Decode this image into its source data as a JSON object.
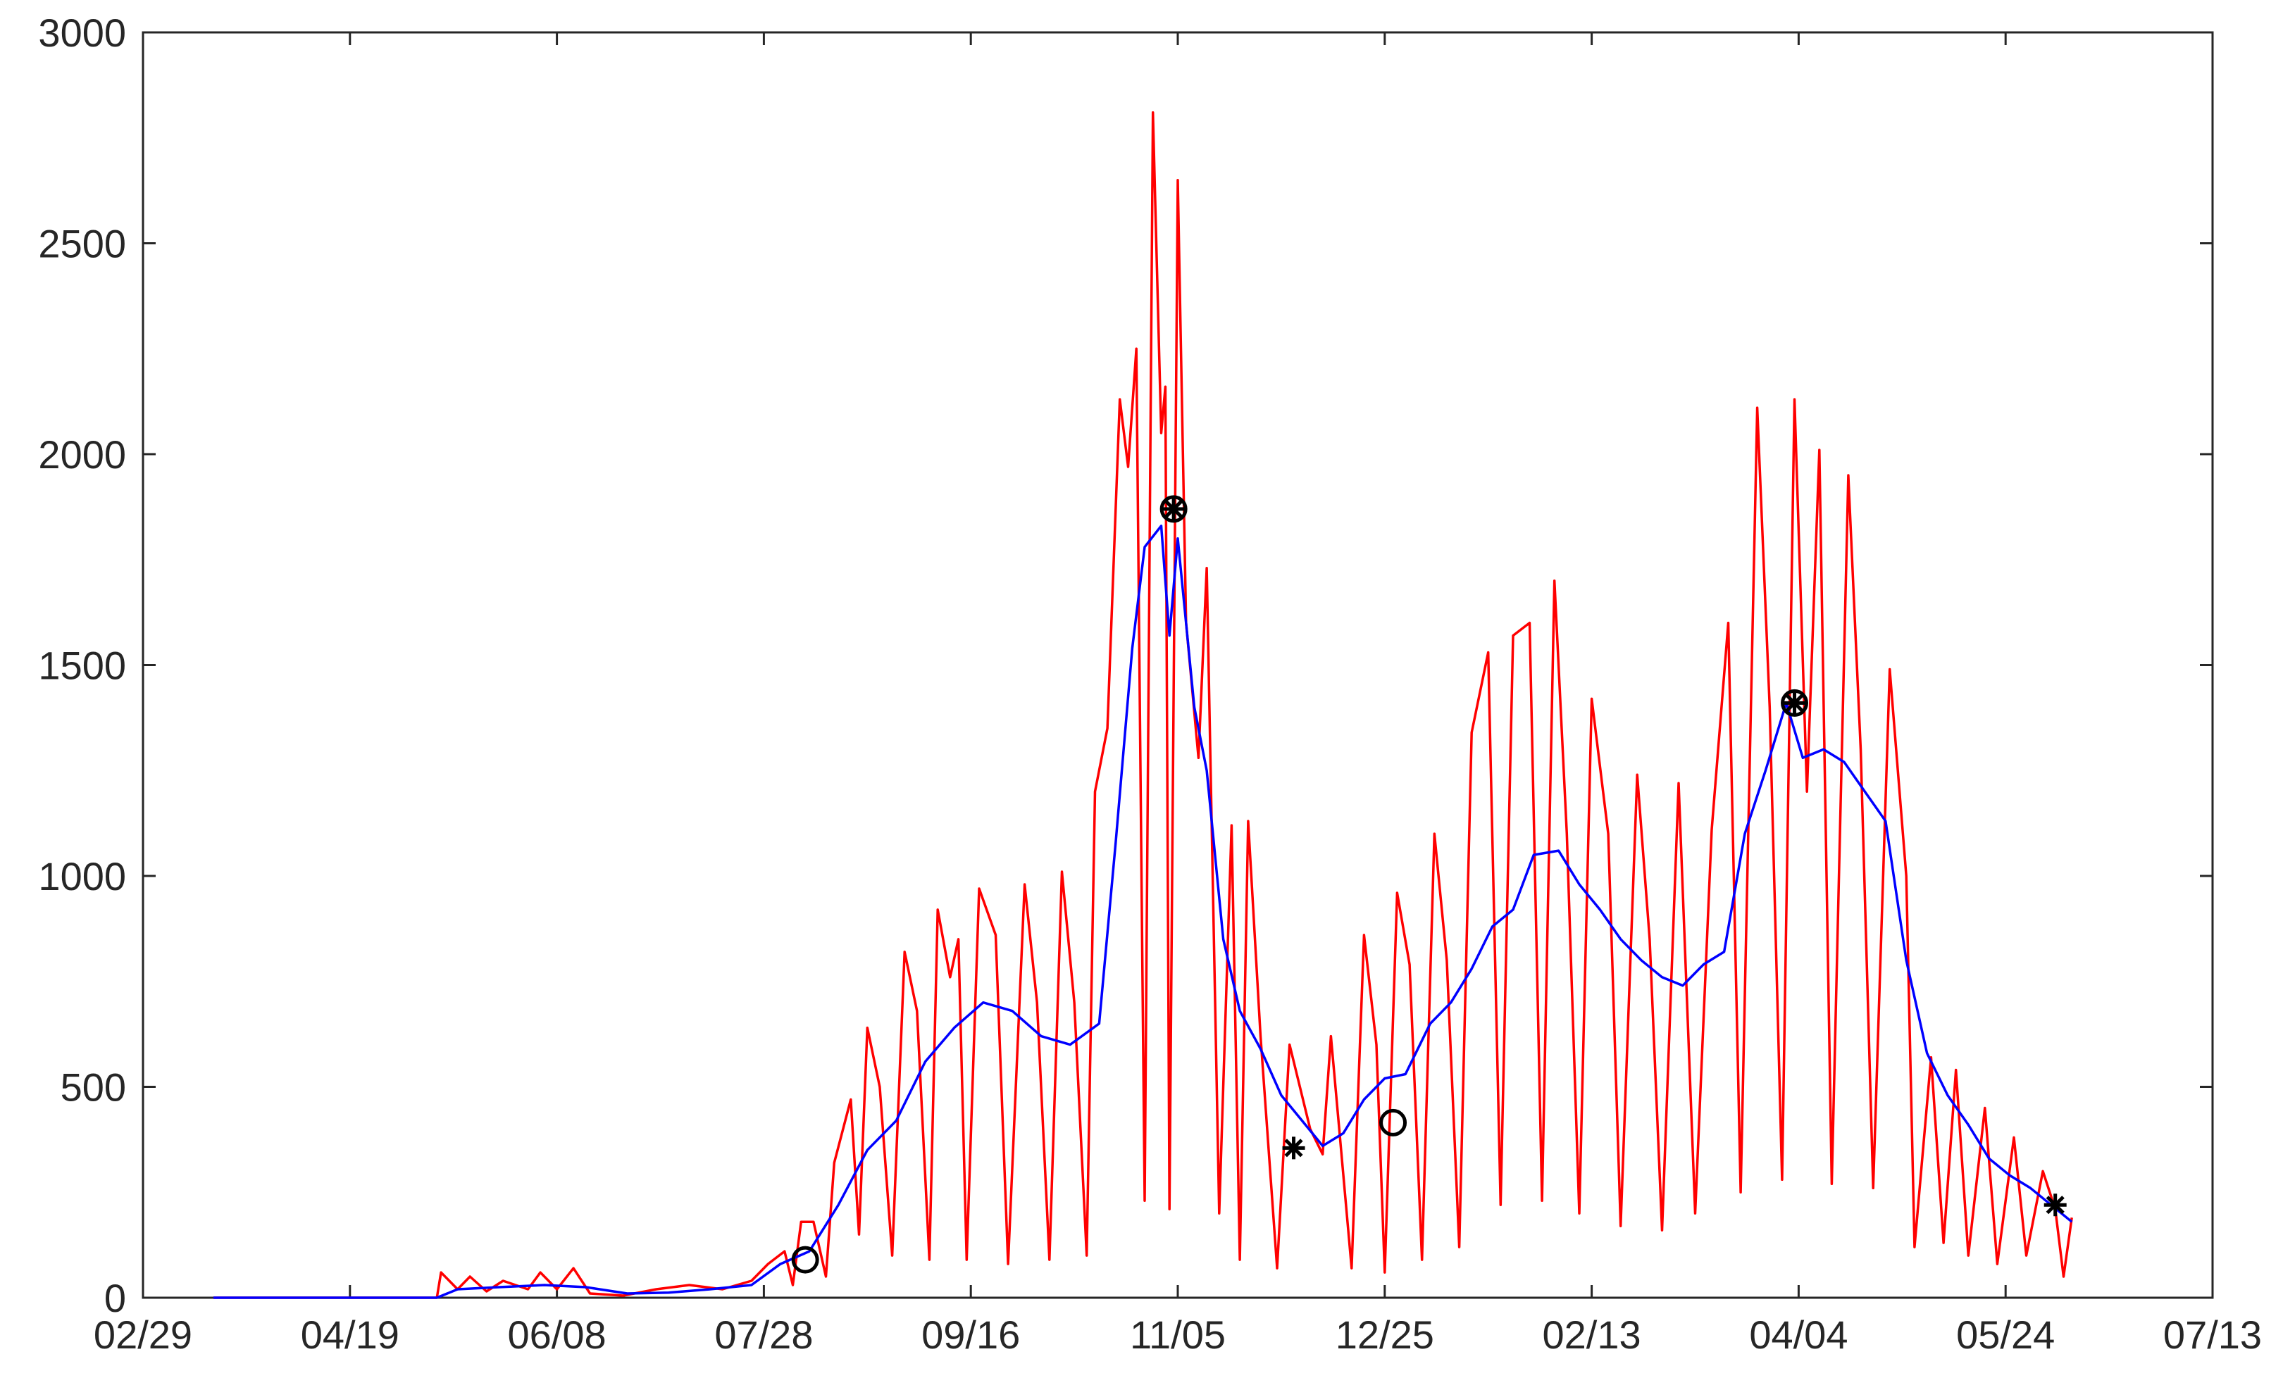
{
  "chart_data": {
    "type": "line",
    "title": "",
    "xlabel": "",
    "ylabel": "",
    "xlim": [
      "2020-02-29",
      "2021-07-13"
    ],
    "ylim": [
      0,
      3000
    ],
    "grid": false,
    "x_ticks": [
      "02/29",
      "04/19",
      "06/08",
      "07/28",
      "09/16",
      "11/05",
      "12/25",
      "02/13",
      "04/04",
      "05/24",
      "07/13"
    ],
    "y_ticks": [
      "0",
      "500",
      "1000",
      "1500",
      "2000",
      "2500",
      "3000"
    ],
    "colors": {
      "daily": "#ff0000",
      "average": "#0000ff",
      "markers": "#000000"
    },
    "series": [
      {
        "values_note": "",
        "color": "#ff0000",
        "points": [
          [
            "2020-03-17",
            0
          ],
          [
            "2020-05-10",
            0
          ],
          [
            "2020-05-11",
            60
          ],
          [
            "2020-05-15",
            20
          ],
          [
            "2020-05-18",
            50
          ],
          [
            "2020-05-22",
            15
          ],
          [
            "2020-05-26",
            40
          ],
          [
            "2020-06-01",
            20
          ],
          [
            "2020-06-04",
            60
          ],
          [
            "2020-06-08",
            20
          ],
          [
            "2020-06-12",
            70
          ],
          [
            "2020-06-16",
            10
          ],
          [
            "2020-06-24",
            5
          ],
          [
            "2020-07-02",
            20
          ],
          [
            "2020-07-10",
            30
          ],
          [
            "2020-07-18",
            20
          ],
          [
            "2020-07-25",
            40
          ],
          [
            "2020-07-29",
            80
          ],
          [
            "2020-08-02",
            110
          ],
          [
            "2020-08-04",
            30
          ],
          [
            "2020-08-06",
            180
          ],
          [
            "2020-08-09",
            180
          ],
          [
            "2020-08-12",
            50
          ],
          [
            "2020-08-14",
            320
          ],
          [
            "2020-08-18",
            470
          ],
          [
            "2020-08-20",
            150
          ],
          [
            "2020-08-22",
            640
          ],
          [
            "2020-08-25",
            500
          ],
          [
            "2020-08-28",
            100
          ],
          [
            "2020-08-31",
            820
          ],
          [
            "2020-09-03",
            680
          ],
          [
            "2020-09-06",
            90
          ],
          [
            "2020-09-08",
            920
          ],
          [
            "2020-09-11",
            760
          ],
          [
            "2020-09-13",
            850
          ],
          [
            "2020-09-15",
            90
          ],
          [
            "2020-09-18",
            970
          ],
          [
            "2020-09-22",
            860
          ],
          [
            "2020-09-25",
            80
          ],
          [
            "2020-09-29",
            980
          ],
          [
            "2020-10-02",
            700
          ],
          [
            "2020-10-05",
            90
          ],
          [
            "2020-10-08",
            1010
          ],
          [
            "2020-10-11",
            700
          ],
          [
            "2020-10-14",
            100
          ],
          [
            "2020-10-16",
            1200
          ],
          [
            "2020-10-19",
            1350
          ],
          [
            "2020-10-22",
            2130
          ],
          [
            "2020-10-24",
            1970
          ],
          [
            "2020-10-26",
            2250
          ],
          [
            "2020-10-28",
            230
          ],
          [
            "2020-10-30",
            2810
          ],
          [
            "2020-11-01",
            2050
          ],
          [
            "2020-11-02",
            2160
          ],
          [
            "2020-11-03",
            210
          ],
          [
            "2020-11-05",
            2650
          ],
          [
            "2020-11-07",
            1600
          ],
          [
            "2020-11-10",
            1280
          ],
          [
            "2020-11-12",
            1730
          ],
          [
            "2020-11-15",
            200
          ],
          [
            "2020-11-18",
            1120
          ],
          [
            "2020-11-20",
            90
          ],
          [
            "2020-11-22",
            1130
          ],
          [
            "2020-11-25",
            620
          ],
          [
            "2020-11-29",
            70
          ],
          [
            "2020-12-02",
            600
          ],
          [
            "2020-12-07",
            400
          ],
          [
            "2020-12-10",
            340
          ],
          [
            "2020-12-12",
            620
          ],
          [
            "2020-12-14",
            400
          ],
          [
            "2020-12-17",
            70
          ],
          [
            "2020-12-20",
            860
          ],
          [
            "2020-12-23",
            600
          ],
          [
            "2020-12-25",
            60
          ],
          [
            "2020-12-28",
            960
          ],
          [
            "2020-12-31",
            790
          ],
          [
            "2021-01-03",
            90
          ],
          [
            "2021-01-06",
            1100
          ],
          [
            "2021-01-09",
            800
          ],
          [
            "2021-01-12",
            120
          ],
          [
            "2021-01-15",
            1340
          ],
          [
            "2021-01-19",
            1530
          ],
          [
            "2021-01-22",
            220
          ],
          [
            "2021-01-25",
            1570
          ],
          [
            "2021-01-29",
            1600
          ],
          [
            "2021-02-01",
            230
          ],
          [
            "2021-02-04",
            1700
          ],
          [
            "2021-02-07",
            1100
          ],
          [
            "2021-02-10",
            200
          ],
          [
            "2021-02-13",
            1420
          ],
          [
            "2021-02-17",
            1100
          ],
          [
            "2021-02-20",
            170
          ],
          [
            "2021-02-24",
            1240
          ],
          [
            "2021-02-27",
            850
          ],
          [
            "2021-03-02",
            160
          ],
          [
            "2021-03-06",
            1220
          ],
          [
            "2021-03-10",
            200
          ],
          [
            "2021-03-14",
            1110
          ],
          [
            "2021-03-18",
            1600
          ],
          [
            "2021-03-21",
            250
          ],
          [
            "2021-03-25",
            2110
          ],
          [
            "2021-03-28",
            1400
          ],
          [
            "2021-03-31",
            280
          ],
          [
            "2021-04-03",
            2130
          ],
          [
            "2021-04-06",
            1200
          ],
          [
            "2021-04-09",
            2010
          ],
          [
            "2021-04-12",
            270
          ],
          [
            "2021-04-16",
            1950
          ],
          [
            "2021-04-19",
            1300
          ],
          [
            "2021-04-22",
            260
          ],
          [
            "2021-04-26",
            1490
          ],
          [
            "2021-04-30",
            1000
          ],
          [
            "2021-05-02",
            120
          ],
          [
            "2021-05-06",
            570
          ],
          [
            "2021-05-09",
            130
          ],
          [
            "2021-05-12",
            540
          ],
          [
            "2021-05-15",
            100
          ],
          [
            "2021-05-19",
            450
          ],
          [
            "2021-05-22",
            80
          ],
          [
            "2021-05-26",
            380
          ],
          [
            "2021-05-29",
            100
          ],
          [
            "2021-06-02",
            300
          ],
          [
            "2021-06-05",
            210
          ],
          [
            "2021-06-07",
            50
          ],
          [
            "2021-06-09",
            190
          ]
        ]
      },
      {
        "values_note": "",
        "color": "#0000ff",
        "points": [
          [
            "2020-03-17",
            0
          ],
          [
            "2020-05-10",
            0
          ],
          [
            "2020-05-15",
            20
          ],
          [
            "2020-05-25",
            25
          ],
          [
            "2020-06-05",
            30
          ],
          [
            "2020-06-15",
            25
          ],
          [
            "2020-06-25",
            10
          ],
          [
            "2020-07-05",
            12
          ],
          [
            "2020-07-15",
            20
          ],
          [
            "2020-07-25",
            30
          ],
          [
            "2020-08-01",
            80
          ],
          [
            "2020-08-08",
            110
          ],
          [
            "2020-08-15",
            220
          ],
          [
            "2020-08-22",
            350
          ],
          [
            "2020-08-29",
            420
          ],
          [
            "2020-09-05",
            560
          ],
          [
            "2020-09-12",
            640
          ],
          [
            "2020-09-19",
            700
          ],
          [
            "2020-09-26",
            680
          ],
          [
            "2020-10-03",
            620
          ],
          [
            "2020-10-10",
            600
          ],
          [
            "2020-10-17",
            650
          ],
          [
            "2020-10-21",
            1080
          ],
          [
            "2020-10-25",
            1540
          ],
          [
            "2020-10-28",
            1780
          ],
          [
            "2020-11-01",
            1830
          ],
          [
            "2020-11-03",
            1570
          ],
          [
            "2020-11-05",
            1800
          ],
          [
            "2020-11-09",
            1400
          ],
          [
            "2020-11-12",
            1250
          ],
          [
            "2020-11-16",
            850
          ],
          [
            "2020-11-20",
            680
          ],
          [
            "2020-11-25",
            590
          ],
          [
            "2020-11-30",
            480
          ],
          [
            "2020-12-05",
            420
          ],
          [
            "2020-12-10",
            360
          ],
          [
            "2020-12-15",
            390
          ],
          [
            "2020-12-20",
            470
          ],
          [
            "2020-12-25",
            520
          ],
          [
            "2020-12-30",
            530
          ],
          [
            "2021-01-05",
            650
          ],
          [
            "2021-01-10",
            700
          ],
          [
            "2021-01-15",
            780
          ],
          [
            "2021-01-20",
            880
          ],
          [
            "2021-01-25",
            920
          ],
          [
            "2021-01-30",
            1050
          ],
          [
            "2021-02-05",
            1060
          ],
          [
            "2021-02-10",
            980
          ],
          [
            "2021-02-15",
            920
          ],
          [
            "2021-02-20",
            850
          ],
          [
            "2021-02-25",
            800
          ],
          [
            "2021-03-02",
            760
          ],
          [
            "2021-03-07",
            740
          ],
          [
            "2021-03-12",
            790
          ],
          [
            "2021-03-17",
            820
          ],
          [
            "2021-03-22",
            1100
          ],
          [
            "2021-03-27",
            1250
          ],
          [
            "2021-04-01",
            1410
          ],
          [
            "2021-04-05",
            1280
          ],
          [
            "2021-04-10",
            1300
          ],
          [
            "2021-04-15",
            1270
          ],
          [
            "2021-04-20",
            1200
          ],
          [
            "2021-04-25",
            1130
          ],
          [
            "2021-04-30",
            800
          ],
          [
            "2021-05-05",
            580
          ],
          [
            "2021-05-10",
            480
          ],
          [
            "2021-05-15",
            410
          ],
          [
            "2021-05-20",
            330
          ],
          [
            "2021-05-25",
            290
          ],
          [
            "2021-05-30",
            260
          ],
          [
            "2021-06-04",
            220
          ],
          [
            "2021-06-09",
            180
          ]
        ]
      }
    ],
    "markers": [
      {
        "type": "circle",
        "x": "2020-08-07",
        "y": 90
      },
      {
        "type": "circle",
        "x": "2020-11-04",
        "y": 1870
      },
      {
        "type": "asterisk",
        "x": "2020-11-04",
        "y": 1870
      },
      {
        "type": "asterisk",
        "x": "2020-12-03",
        "y": 355
      },
      {
        "type": "circle",
        "x": "2020-12-27",
        "y": 415
      },
      {
        "type": "circle",
        "x": "2021-04-03",
        "y": 1410
      },
      {
        "type": "asterisk",
        "x": "2021-04-03",
        "y": 1410
      },
      {
        "type": "asterisk",
        "x": "2021-06-05",
        "y": 220
      }
    ]
  }
}
